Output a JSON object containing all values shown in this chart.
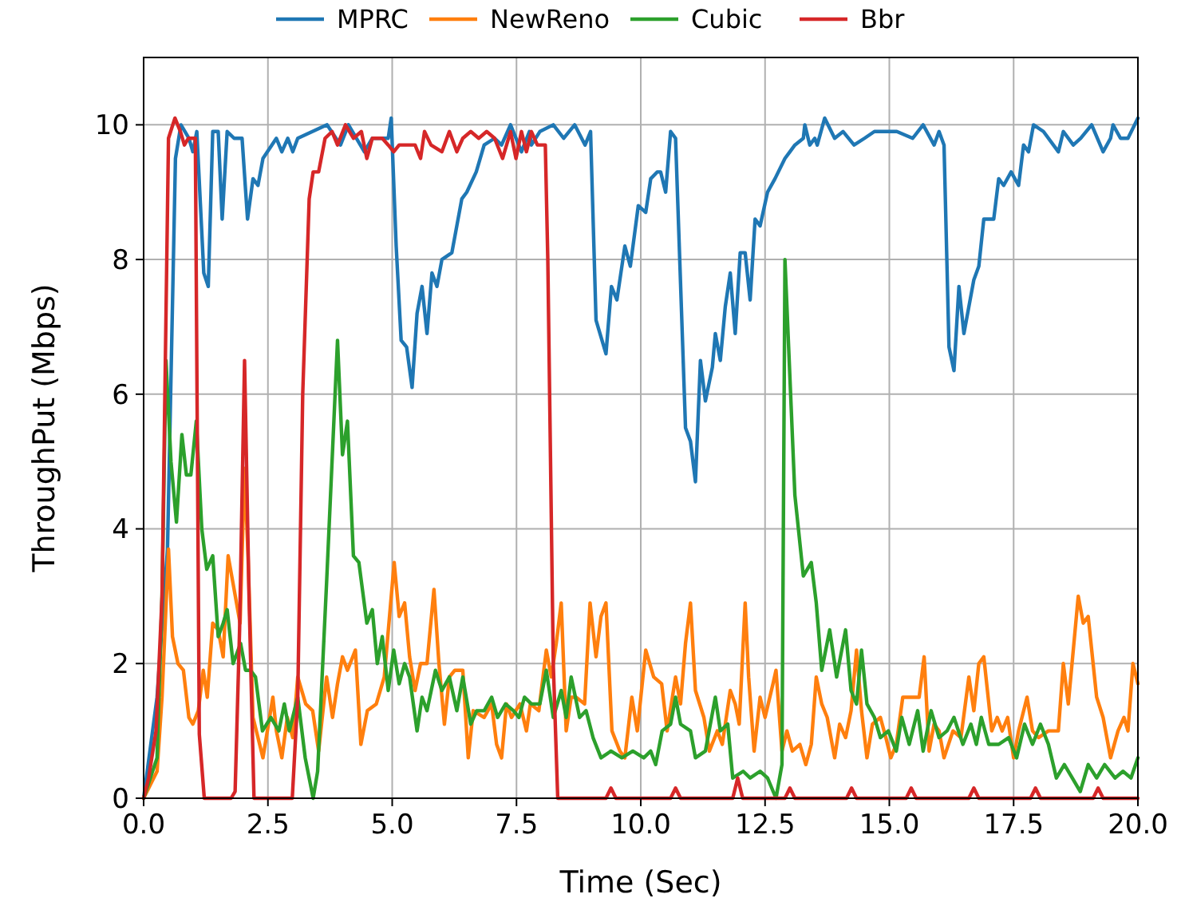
{
  "chart_data": {
    "type": "line",
    "xlabel": "Time (Sec)",
    "ylabel": "ThroughPut (Mbps)",
    "xlim": [
      0,
      20
    ],
    "ylim": [
      0,
      11
    ],
    "xticks": [
      {
        "value": 0,
        "label": "0.0"
      },
      {
        "value": 2.5,
        "label": "2.5"
      },
      {
        "value": 5,
        "label": "5.0"
      },
      {
        "value": 7.5,
        "label": "7.5"
      },
      {
        "value": 10,
        "label": "10.0"
      },
      {
        "value": 12.5,
        "label": "12.5"
      },
      {
        "value": 15,
        "label": "15.0"
      },
      {
        "value": 17.5,
        "label": "17.5"
      },
      {
        "value": 20,
        "label": "20.0"
      }
    ],
    "yticks": [
      0,
      2,
      4,
      6,
      8,
      10
    ],
    "grid": true,
    "legend": "top",
    "line_style": "solid",
    "marker": "none",
    "series": [
      {
        "name": "MPRC",
        "color": "#1f77b4",
        "x": [
          0,
          0.27,
          0.48,
          0.64,
          0.75,
          0.91,
          0.99,
          1.07,
          1.21,
          1.3,
          1.39,
          1.5,
          1.58,
          1.68,
          1.82,
          1.98,
          2.09,
          2.2,
          2.3,
          2.4,
          2.67,
          2.78,
          2.9,
          3.0,
          3.1,
          3.69,
          3.96,
          4.12,
          4.44,
          4.6,
          4.92,
          4.98,
          5.08,
          5.18,
          5.29,
          5.4,
          5.5,
          5.6,
          5.7,
          5.8,
          5.9,
          6.0,
          6.2,
          6.3,
          6.4,
          6.5,
          6.69,
          6.85,
          7.06,
          7.2,
          7.38,
          7.6,
          7.76,
          7.8,
          7.97,
          8.24,
          8.45,
          8.67,
          8.88,
          8.99,
          9.1,
          9.3,
          9.41,
          9.52,
          9.68,
          9.79,
          9.95,
          10.1,
          10.2,
          10.33,
          10.4,
          10.5,
          10.6,
          10.7,
          10.9,
          11.0,
          11.1,
          11.2,
          11.3,
          11.44,
          11.5,
          11.6,
          11.7,
          11.8,
          11.9,
          12.0,
          12.1,
          12.2,
          12.3,
          12.4,
          12.55,
          12.7,
          12.9,
          13.0,
          13.1,
          13.27,
          13.3,
          13.4,
          13.5,
          13.55,
          13.7,
          13.9,
          14.07,
          14.29,
          14.5,
          14.7,
          14.93,
          15.15,
          15.47,
          15.68,
          15.9,
          16.0,
          16.1,
          16.2,
          16.3,
          16.4,
          16.5,
          16.7,
          16.8,
          16.9,
          17.1,
          17.2,
          17.3,
          17.45,
          17.6,
          17.7,
          17.8,
          17.9,
          18.1,
          18.4,
          18.5,
          18.7,
          18.85,
          19.07,
          19.3,
          19.45,
          19.5,
          19.65,
          19.8,
          20.0
        ],
        "values": [
          0,
          1.5,
          3.7,
          9.5,
          10.0,
          9.8,
          9.6,
          9.9,
          7.8,
          7.6,
          9.9,
          9.9,
          8.6,
          9.9,
          9.8,
          9.8,
          8.6,
          9.2,
          9.1,
          9.5,
          9.8,
          9.6,
          9.8,
          9.6,
          9.8,
          10.0,
          9.7,
          10.0,
          9.6,
          9.8,
          9.8,
          10.1,
          8.2,
          6.8,
          6.7,
          6.1,
          7.2,
          7.6,
          6.9,
          7.8,
          7.6,
          8.0,
          8.1,
          8.5,
          8.9,
          9.0,
          9.3,
          9.7,
          9.8,
          9.7,
          10.0,
          9.6,
          9.9,
          9.7,
          9.9,
          10.0,
          9.8,
          10.0,
          9.7,
          9.9,
          7.1,
          6.6,
          7.6,
          7.4,
          8.2,
          7.9,
          8.8,
          8.7,
          9.2,
          9.3,
          9.3,
          9.0,
          9.9,
          9.8,
          5.5,
          5.3,
          4.7,
          6.5,
          5.9,
          6.4,
          6.9,
          6.5,
          7.3,
          7.8,
          6.9,
          8.1,
          8.1,
          7.4,
          8.6,
          8.5,
          9.0,
          9.2,
          9.5,
          9.6,
          9.7,
          9.8,
          10.0,
          9.7,
          9.8,
          9.7,
          10.1,
          9.8,
          9.9,
          9.7,
          9.8,
          9.9,
          9.9,
          9.9,
          9.8,
          10.0,
          9.7,
          9.9,
          9.7,
          6.7,
          6.35,
          7.6,
          6.9,
          7.7,
          7.9,
          8.6,
          8.6,
          9.2,
          9.1,
          9.3,
          9.1,
          9.7,
          9.6,
          10.0,
          9.9,
          9.6,
          9.9,
          9.7,
          9.8,
          10.0,
          9.6,
          9.8,
          10.0,
          9.8,
          9.8,
          10.1
        ]
      },
      {
        "name": "NewReno",
        "color": "#ff7f0e",
        "x": [
          0,
          0.27,
          0.37,
          0.5,
          0.58,
          0.69,
          0.8,
          0.91,
          0.99,
          1.1,
          1.2,
          1.28,
          1.39,
          1.5,
          1.6,
          1.7,
          1.82,
          1.94,
          2.03,
          2.1,
          2.2,
          2.3,
          2.4,
          2.6,
          2.67,
          2.78,
          2.89,
          3.0,
          3.1,
          3.26,
          3.4,
          3.52,
          3.68,
          3.8,
          3.9,
          4.0,
          4.1,
          4.26,
          4.37,
          4.5,
          4.68,
          4.84,
          5.04,
          5.14,
          5.25,
          5.35,
          5.46,
          5.57,
          5.7,
          5.84,
          5.94,
          6.05,
          6.15,
          6.26,
          6.42,
          6.53,
          6.63,
          6.85,
          7.0,
          7.1,
          7.2,
          7.3,
          7.4,
          7.57,
          7.7,
          7.78,
          7.95,
          8.1,
          8.2,
          8.3,
          8.4,
          8.5,
          8.6,
          8.7,
          8.87,
          8.98,
          9.1,
          9.2,
          9.3,
          9.42,
          9.58,
          9.68,
          9.82,
          9.93,
          10.1,
          10.26,
          10.42,
          10.53,
          10.7,
          10.8,
          10.9,
          11.0,
          11.1,
          11.27,
          11.38,
          11.54,
          11.64,
          11.8,
          11.9,
          11.98,
          12.1,
          12.17,
          12.28,
          12.4,
          12.5,
          12.66,
          12.72,
          12.84,
          12.94,
          13.05,
          13.2,
          13.32,
          13.43,
          13.53,
          13.64,
          13.75,
          13.9,
          14.0,
          14.12,
          14.23,
          14.34,
          14.44,
          14.55,
          14.66,
          14.82,
          14.93,
          15.03,
          15.14,
          15.27,
          15.4,
          15.6,
          15.7,
          15.8,
          15.9,
          16.0,
          16.1,
          16.28,
          16.44,
          16.6,
          16.7,
          16.8,
          16.9,
          17.06,
          17.17,
          17.27,
          17.38,
          17.5,
          17.6,
          17.77,
          17.88,
          18.0,
          18.2,
          18.4,
          18.5,
          18.6,
          18.8,
          18.9,
          19.0,
          19.17,
          19.3,
          19.45,
          19.6,
          19.72,
          19.8,
          19.9,
          20.0
        ],
        "values": [
          0,
          0.4,
          1.5,
          3.7,
          2.4,
          2.0,
          1.9,
          1.2,
          1.1,
          1.3,
          1.9,
          1.5,
          2.6,
          2.5,
          2.1,
          3.6,
          3.1,
          2.6,
          4.9,
          3.6,
          1.2,
          0.9,
          0.6,
          1.5,
          1.0,
          0.6,
          1.2,
          0.9,
          1.8,
          1.4,
          1.3,
          0.7,
          1.8,
          1.2,
          1.7,
          2.1,
          1.9,
          2.2,
          0.8,
          1.3,
          1.4,
          1.8,
          3.5,
          2.7,
          2.9,
          2.1,
          1.6,
          2.0,
          2.0,
          3.1,
          2.0,
          1.1,
          1.8,
          1.9,
          1.9,
          0.6,
          1.3,
          1.2,
          1.4,
          0.8,
          0.6,
          1.4,
          1.2,
          1.4,
          1.0,
          1.4,
          1.3,
          2.2,
          1.8,
          2.3,
          2.9,
          1.0,
          1.5,
          1.5,
          1.4,
          2.9,
          2.1,
          2.7,
          2.9,
          1.0,
          0.7,
          0.6,
          1.5,
          1.0,
          2.2,
          1.8,
          1.7,
          1.0,
          1.8,
          1.4,
          2.3,
          2.9,
          1.6,
          1.2,
          0.7,
          1.0,
          0.8,
          1.6,
          1.4,
          1.1,
          2.9,
          1.8,
          0.7,
          1.5,
          1.2,
          1.7,
          1.9,
          0.7,
          1.0,
          0.7,
          0.8,
          0.5,
          0.8,
          1.8,
          1.4,
          1.2,
          0.6,
          1.1,
          0.9,
          1.3,
          2.2,
          1.3,
          0.6,
          1.1,
          1.2,
          0.9,
          0.6,
          0.8,
          1.5,
          1.5,
          1.5,
          2.1,
          0.7,
          1.1,
          1.0,
          0.6,
          1.0,
          0.9,
          1.8,
          1.3,
          2.0,
          2.1,
          1.0,
          1.2,
          1.0,
          1.2,
          0.6,
          1.0,
          1.5,
          1.0,
          0.9,
          1.0,
          1.0,
          2.0,
          1.4,
          3.0,
          2.6,
          2.7,
          1.5,
          1.2,
          0.6,
          1.0,
          1.2,
          1.0,
          2.0,
          1.7
        ]
      },
      {
        "name": "Cubic",
        "color": "#2ca02c",
        "x": [
          0,
          0.27,
          0.37,
          0.45,
          0.55,
          0.66,
          0.77,
          0.86,
          0.95,
          1.06,
          1.17,
          1.27,
          1.39,
          1.5,
          1.6,
          1.68,
          1.8,
          1.95,
          2.05,
          2.15,
          2.25,
          2.39,
          2.56,
          2.72,
          2.83,
          2.93,
          3.1,
          3.25,
          3.41,
          3.5,
          3.68,
          3.9,
          4.0,
          4.1,
          4.22,
          4.33,
          4.49,
          4.6,
          4.7,
          4.8,
          4.92,
          5.03,
          5.14,
          5.25,
          5.35,
          5.5,
          5.6,
          5.7,
          5.87,
          6.0,
          6.15,
          6.3,
          6.42,
          6.58,
          6.7,
          6.85,
          7.0,
          7.12,
          7.28,
          7.44,
          7.55,
          7.66,
          7.8,
          7.97,
          8.1,
          8.24,
          8.4,
          8.5,
          8.6,
          8.77,
          8.9,
          9.04,
          9.2,
          9.4,
          9.62,
          9.84,
          10.06,
          10.2,
          10.3,
          10.43,
          10.6,
          10.7,
          10.8,
          11.0,
          11.1,
          11.3,
          11.5,
          11.6,
          11.75,
          11.85,
          12.06,
          12.2,
          12.4,
          12.55,
          12.72,
          12.84,
          12.9,
          13.1,
          13.27,
          13.43,
          13.53,
          13.64,
          13.8,
          13.94,
          14.12,
          14.23,
          14.34,
          14.44,
          14.55,
          14.7,
          14.82,
          14.98,
          15.14,
          15.25,
          15.4,
          15.57,
          15.68,
          15.84,
          16.0,
          16.16,
          16.3,
          16.48,
          16.64,
          16.75,
          16.85,
          17.0,
          17.2,
          17.4,
          17.56,
          17.72,
          17.88,
          18.04,
          18.2,
          18.36,
          18.52,
          18.68,
          18.84,
          19.0,
          19.17,
          19.33,
          19.54,
          19.7,
          19.86,
          20.0
        ],
        "values": [
          0,
          0.6,
          3,
          6.5,
          5.0,
          4.1,
          5.4,
          4.8,
          4.8,
          5.6,
          4.0,
          3.4,
          3.6,
          2.4,
          2.6,
          2.8,
          2.0,
          2.3,
          1.9,
          1.9,
          1.8,
          1.0,
          1.2,
          1.0,
          1.4,
          1.0,
          1.5,
          0.6,
          0,
          0.4,
          3.2,
          6.8,
          5.1,
          5.6,
          3.6,
          3.5,
          2.6,
          2.8,
          2.0,
          2.4,
          1.6,
          2.2,
          1.7,
          2.0,
          1.8,
          1.0,
          1.5,
          1.3,
          1.9,
          1.6,
          1.8,
          1.3,
          1.8,
          1.1,
          1.3,
          1.3,
          1.5,
          1.2,
          1.4,
          1.3,
          1.2,
          1.5,
          1.4,
          1.4,
          1.9,
          1.2,
          1.6,
          1.2,
          1.8,
          1.2,
          1.3,
          0.9,
          0.6,
          0.7,
          0.6,
          0.7,
          0.6,
          0.7,
          0.5,
          1.0,
          1.1,
          1.5,
          1.1,
          1.0,
          0.6,
          0.7,
          1.5,
          1.0,
          1.1,
          0.3,
          0.4,
          0.3,
          0.4,
          0.3,
          0,
          0.5,
          8.0,
          4.5,
          3.3,
          3.5,
          2.9,
          1.9,
          2.5,
          1.8,
          2.5,
          1.6,
          1.4,
          2.2,
          1.4,
          1.2,
          0.9,
          1.0,
          0.7,
          1.2,
          0.8,
          1.3,
          0.7,
          1.3,
          0.9,
          1.0,
          1.2,
          0.8,
          1.1,
          0.8,
          1.2,
          0.8,
          0.8,
          0.9,
          0.6,
          1.1,
          0.8,
          1.1,
          0.8,
          0.3,
          0.5,
          0.3,
          0.1,
          0.5,
          0.3,
          0.5,
          0.3,
          0.4,
          0.3,
          0.6
        ]
      },
      {
        "name": "Bbr",
        "color": "#d62728",
        "x": [
          0,
          0.1,
          0.25,
          0.37,
          0.5,
          0.63,
          0.74,
          0.82,
          0.9,
          1.04,
          1.12,
          1.22,
          1.76,
          1.84,
          1.93,
          2.03,
          2.12,
          2.22,
          2.99,
          3.1,
          3.2,
          3.33,
          3.41,
          3.52,
          3.65,
          3.79,
          3.9,
          4.06,
          4.22,
          4.38,
          4.49,
          4.6,
          4.8,
          4.92,
          5.03,
          5.14,
          5.46,
          5.57,
          5.65,
          5.78,
          6.0,
          6.15,
          6.3,
          6.42,
          6.58,
          6.74,
          6.9,
          7.06,
          7.22,
          7.38,
          7.49,
          7.6,
          7.7,
          7.8,
          7.92,
          8.08,
          8.13,
          8.24,
          8.33,
          9.3,
          9.4,
          9.5,
          10.6,
          10.7,
          10.8,
          11.85,
          11.95,
          12.05,
          12.9,
          13.0,
          13.1,
          14.14,
          14.24,
          14.34,
          15.34,
          15.44,
          15.54,
          16.6,
          16.7,
          16.8,
          17.84,
          17.94,
          18.04,
          19.1,
          19.2,
          19.3,
          20.0
        ],
        "values": [
          0,
          0.3,
          1.0,
          3,
          9.8,
          10.1,
          9.9,
          9.7,
          9.8,
          9.8,
          0.95,
          0,
          0,
          0.1,
          2.5,
          6.5,
          3,
          0,
          0,
          1.5,
          6,
          8.9,
          9.3,
          9.3,
          9.8,
          9.9,
          9.7,
          10.0,
          9.8,
          9.9,
          9.5,
          9.8,
          9.8,
          9.7,
          9.6,
          9.7,
          9.7,
          9.5,
          9.9,
          9.7,
          9.6,
          9.9,
          9.6,
          9.8,
          9.9,
          9.8,
          9.9,
          9.8,
          9.5,
          9.9,
          9.5,
          9.9,
          9.6,
          9.9,
          9.7,
          9.7,
          8.0,
          2,
          0,
          0,
          0.15,
          0,
          0,
          0.15,
          0,
          0,
          0.3,
          0,
          0,
          0.15,
          0,
          0,
          0.15,
          0,
          0,
          0.15,
          0,
          0,
          0.15,
          0,
          0,
          0.15,
          0,
          0,
          0.15,
          0,
          0
        ]
      }
    ]
  }
}
